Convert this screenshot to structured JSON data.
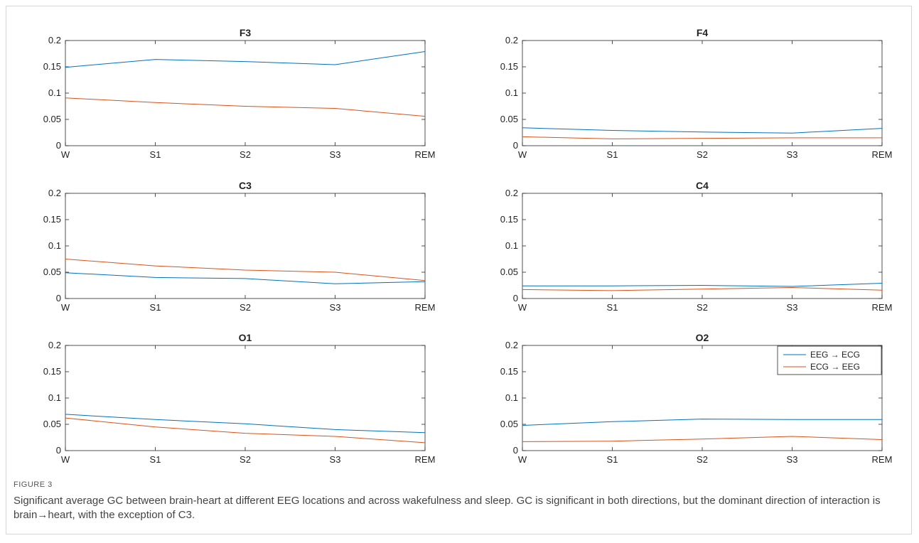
{
  "figure": {
    "label": "FIGURE 3",
    "caption": "Significant average GC between brain-heart at different EEG locations and across wakefulness and sleep. GC is significant in both directions, but the dominant direction of interaction is brain→heart, with the exception of C3."
  },
  "colors": {
    "series_1": "#0072BD",
    "series_2": "#D95319"
  },
  "chart_data": [
    {
      "type": "line",
      "title": "F3",
      "categories": [
        "W",
        "S1",
        "S2",
        "S3",
        "REM"
      ],
      "xlabel": "",
      "ylabel": "",
      "ylim": [
        0,
        0.2
      ],
      "yticks": [
        "0",
        "0.05",
        "0.1",
        "0.15",
        "0.2"
      ],
      "series": [
        {
          "values": [
            0.149,
            0.164,
            0.16,
            0.154,
            0.179
          ]
        },
        {
          "values": [
            0.091,
            0.082,
            0.075,
            0.071,
            0.056
          ]
        }
      ]
    },
    {
      "type": "line",
      "title": "F4",
      "categories": [
        "W",
        "S1",
        "S2",
        "S3",
        "REM"
      ],
      "xlabel": "",
      "ylabel": "",
      "ylim": [
        0,
        0.2
      ],
      "yticks": [
        "0",
        "0.05",
        "0.1",
        "0.15",
        "0.2"
      ],
      "series": [
        {
          "values": [
            0.034,
            0.029,
            0.026,
            0.024,
            0.033
          ]
        },
        {
          "values": [
            0.017,
            0.013,
            0.014,
            0.015,
            0.015
          ]
        }
      ]
    },
    {
      "type": "line",
      "title": "C3",
      "categories": [
        "W",
        "S1",
        "S2",
        "S3",
        "REM"
      ],
      "xlabel": "",
      "ylabel": "",
      "ylim": [
        0,
        0.2
      ],
      "yticks": [
        "0",
        "0.05",
        "0.1",
        "0.15",
        "0.2"
      ],
      "series": [
        {
          "values": [
            0.049,
            0.04,
            0.038,
            0.028,
            0.032
          ]
        },
        {
          "values": [
            0.075,
            0.062,
            0.054,
            0.05,
            0.034
          ]
        }
      ]
    },
    {
      "type": "line",
      "title": "C4",
      "categories": [
        "W",
        "S1",
        "S2",
        "S3",
        "REM"
      ],
      "xlabel": "",
      "ylabel": "",
      "ylim": [
        0,
        0.2
      ],
      "yticks": [
        "0",
        "0.05",
        "0.1",
        "0.15",
        "0.2"
      ],
      "series": [
        {
          "values": [
            0.024,
            0.024,
            0.025,
            0.023,
            0.029
          ]
        },
        {
          "values": [
            0.017,
            0.015,
            0.018,
            0.021,
            0.016
          ]
        }
      ]
    },
    {
      "type": "line",
      "title": "O1",
      "categories": [
        "W",
        "S1",
        "S2",
        "S3",
        "REM"
      ],
      "xlabel": "",
      "ylabel": "",
      "ylim": [
        0,
        0.2
      ],
      "yticks": [
        "0",
        "0.05",
        "0.1",
        "0.15",
        "0.2"
      ],
      "series": [
        {
          "values": [
            0.069,
            0.059,
            0.051,
            0.04,
            0.034
          ]
        },
        {
          "values": [
            0.062,
            0.045,
            0.033,
            0.027,
            0.015
          ]
        }
      ]
    },
    {
      "type": "line",
      "title": "O2",
      "categories": [
        "W",
        "S1",
        "S2",
        "S3",
        "REM"
      ],
      "xlabel": "",
      "ylabel": "",
      "ylim": [
        0,
        0.2
      ],
      "yticks": [
        "0",
        "0.05",
        "0.1",
        "0.15",
        "0.2"
      ],
      "legend_position": "top-right",
      "series": [
        {
          "name": "EEG → ECG",
          "values": [
            0.048,
            0.055,
            0.06,
            0.059,
            0.059
          ]
        },
        {
          "name": "ECG → EEG",
          "values": [
            0.017,
            0.018,
            0.022,
            0.027,
            0.021
          ]
        }
      ]
    }
  ]
}
